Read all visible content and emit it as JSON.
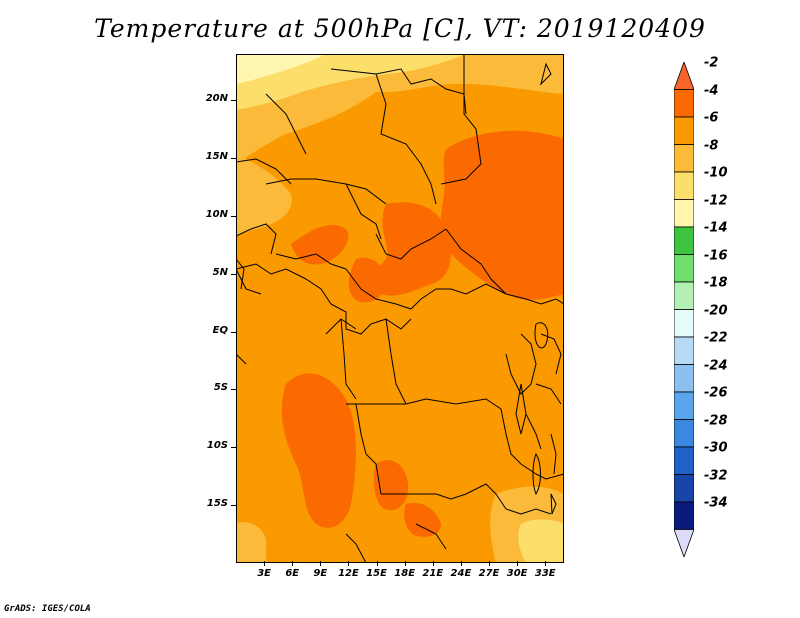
{
  "title": "Temperature at 500hPa [C], VT: 2019120409",
  "footer": "GrADS: IGES/COLA",
  "map": {
    "lat_range": [
      -20,
      24
    ],
    "lon_range": [
      0,
      35
    ],
    "lat_labels": [
      "20N",
      "15N",
      "10N",
      "5N",
      "EQ",
      "5S",
      "10S",
      "15S"
    ],
    "lon_labels": [
      "3E",
      "6E",
      "9E",
      "12E",
      "15E",
      "18E",
      "21E",
      "24E",
      "27E",
      "30E",
      "33E"
    ]
  },
  "colorbar": {
    "labels": [
      "-2",
      "-4",
      "-6",
      "-8",
      "-10",
      "-12",
      "-14",
      "-16",
      "-18",
      "-20",
      "-22",
      "-24",
      "-26",
      "-28",
      "-30",
      "-32",
      "-34"
    ],
    "colors": [
      "#f8642a",
      "#fb6a00",
      "#fb9a00",
      "#fbba3a",
      "#fbdf6a",
      "#fff7b0",
      "#3ec43e",
      "#6fde6f",
      "#b4f0b4",
      "#e8fbfb",
      "#b6daf6",
      "#8cc0f0",
      "#5aa5ec",
      "#3a88e0",
      "#1f63c8",
      "#1846a8",
      "#0c1a80",
      "#dcdcf8"
    ]
  }
}
